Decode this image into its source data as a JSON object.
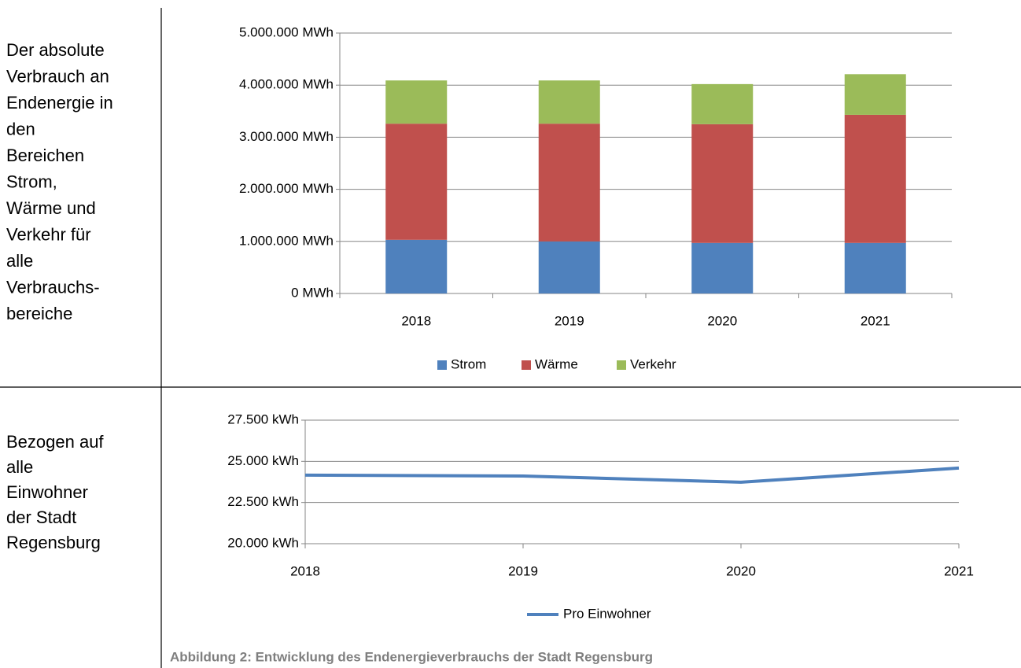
{
  "left_labels": [
    {
      "lines": [
        "Der absolute",
        "Verbrauch an",
        "Endenergie in",
        "den",
        "Bereichen",
        "Strom,",
        "Wärme und",
        "Verkehr für",
        "alle",
        "Verbrauchs-",
        "bereiche"
      ]
    },
    {
      "lines": [
        "Bezogen auf",
        "alle",
        "Einwohner",
        "der Stadt",
        "Regensburg"
      ]
    }
  ],
  "chart_data": [
    {
      "type": "stacked_bar",
      "categories": [
        "2018",
        "2019",
        "2020",
        "2021"
      ],
      "series": [
        {
          "name": "Strom",
          "color": "#4f81bd",
          "values": [
            1030000,
            1000000,
            970000,
            970000
          ]
        },
        {
          "name": "Wärme",
          "color": "#c0504d",
          "values": [
            2230000,
            2260000,
            2280000,
            2460000
          ]
        },
        {
          "name": "Verkehr",
          "color": "#9bbb59",
          "values": [
            830000,
            830000,
            770000,
            780000
          ]
        }
      ],
      "ylim": [
        0,
        5000000
      ],
      "yticks": [
        {
          "value": 0,
          "label": "0 MWh"
        },
        {
          "value": 1000000,
          "label": "1.000.000 MWh"
        },
        {
          "value": 2000000,
          "label": "2.000.000 MWh"
        },
        {
          "value": 3000000,
          "label": "3.000.000 MWh"
        },
        {
          "value": 4000000,
          "label": "4.000.000 MWh"
        },
        {
          "value": 5000000,
          "label": "5.000.000 MWh"
        }
      ],
      "grid": true,
      "legend": "bottom"
    },
    {
      "type": "line",
      "categories": [
        "2018",
        "2019",
        "2020",
        "2021"
      ],
      "series": [
        {
          "name": "Pro Einwohner",
          "color": "#4f81bd",
          "values": [
            24160,
            24110,
            23730,
            24590
          ]
        }
      ],
      "ylim": [
        20000,
        27500
      ],
      "yticks": [
        {
          "value": 20000,
          "label": "20.000 kWh"
        },
        {
          "value": 22500,
          "label": "22.500 kWh"
        },
        {
          "value": 25000,
          "label": "25.000 kWh"
        },
        {
          "value": 27500,
          "label": "27.500 kWh"
        }
      ],
      "grid": true,
      "legend": "bottom"
    }
  ],
  "caption": "Abbildung 2: Entwicklung des Endenergieverbrauchs der Stadt Regensburg"
}
